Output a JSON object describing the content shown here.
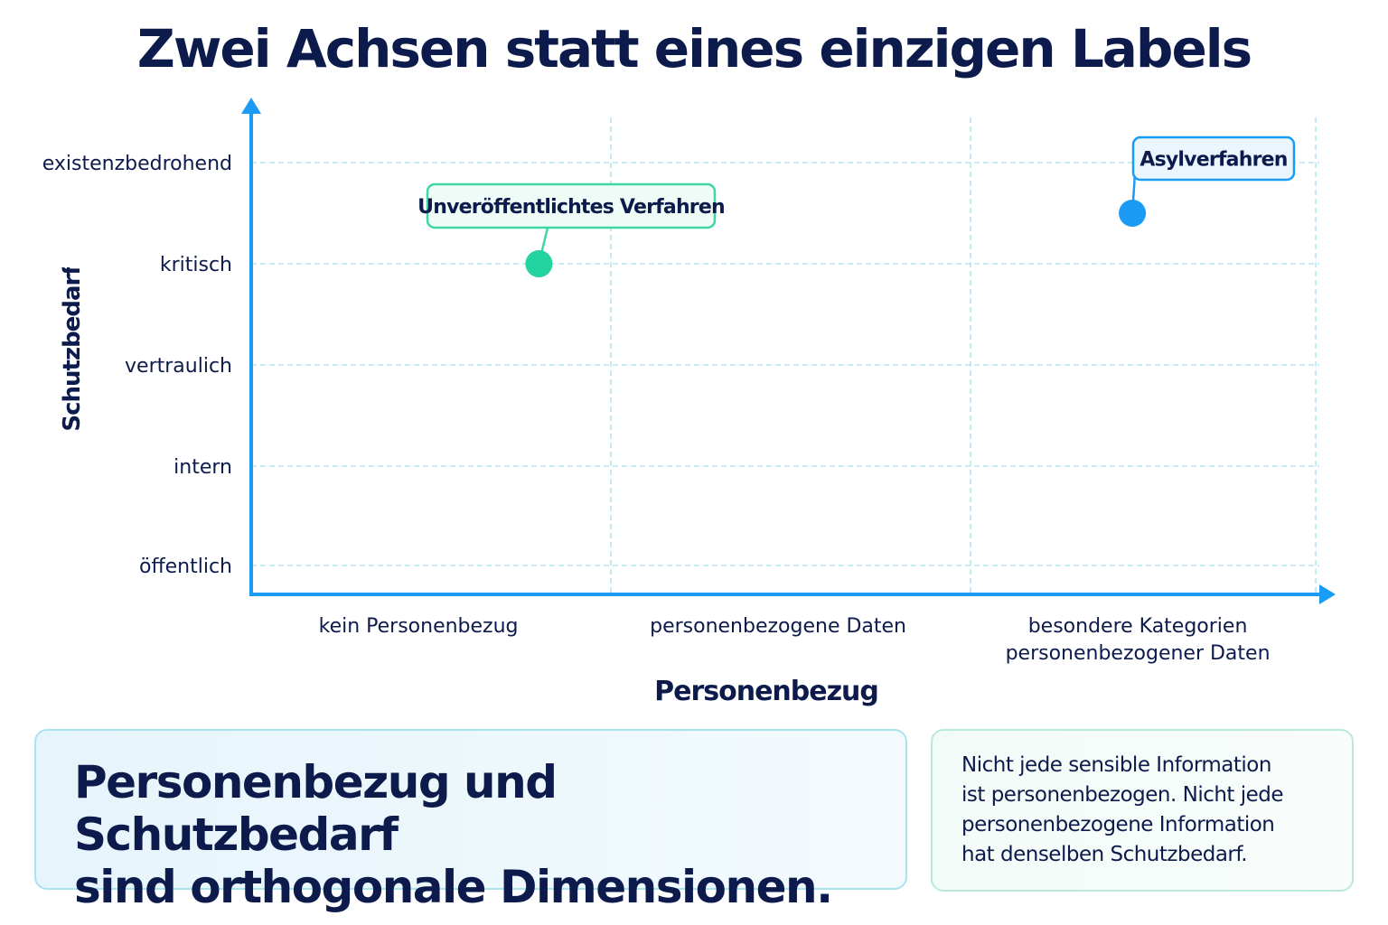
{
  "chart_data": {
    "type": "scatter",
    "title": "Zwei Achsen statt eines einzigen Labels",
    "xlabel": "Personenbezug",
    "ylabel": "Schutzbedarf",
    "x_categories": [
      "kein Personenbezug",
      "personenbezogene Daten",
      "besondere Kategorien personenbezogener Daten"
    ],
    "y_categories": [
      "öffentlich",
      "intern",
      "vertraulich",
      "kritisch",
      "existenzbedrohend"
    ],
    "grid": true,
    "points": [
      {
        "label": "Unveröffentlichtes Verfahren",
        "x": 0.8,
        "y": 3,
        "color": "#22d3a0"
      },
      {
        "label": "Asylverfahren",
        "x": 2.45,
        "y": 3.5,
        "color": "#1a9cf5"
      }
    ]
  },
  "summary": {
    "headline_line1": "Personenbezug und Schutzbedarf",
    "headline_line2": "sind orthogonale Dimensionen.",
    "note_lines": [
      "Nicht jede sensible Information",
      "ist personenbezogen. Nicht jede",
      "personenbezogene Information",
      "hat denselben Schutzbedarf."
    ]
  },
  "colors": {
    "axis": "#1a9cf5",
    "grid": "#a9dfea",
    "text": "#0d1b4c",
    "green_point": "#22d3a0",
    "blue_point": "#1a9cf5"
  }
}
